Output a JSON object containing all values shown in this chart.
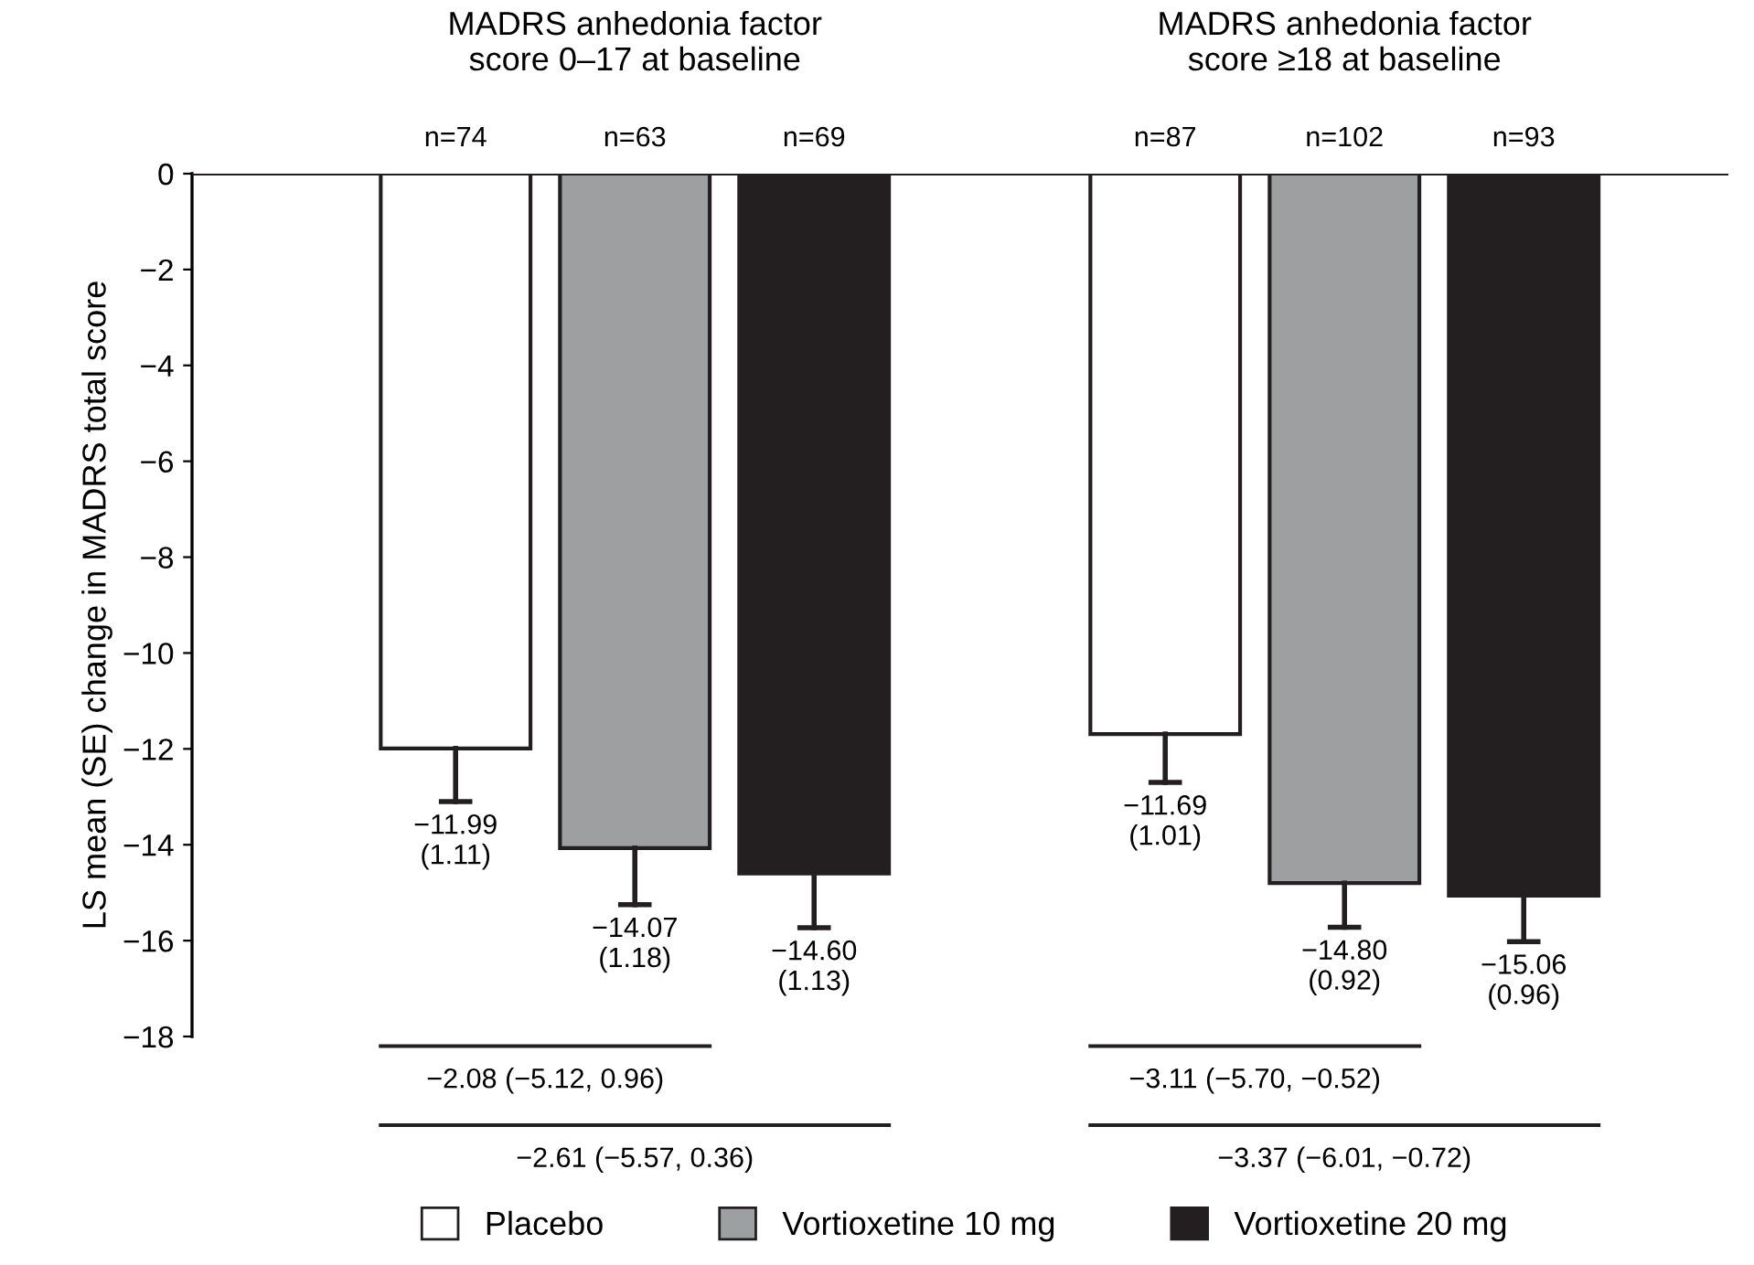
{
  "chart_data": {
    "type": "bar",
    "categories": [
      "MADRS anhedonia factor\nscore 0–17 at baseline",
      "MADRS anhedonia factor\nscore ≥18 at baseline"
    ],
    "ylabel": "LS mean (SE) change in MADRS total score",
    "ylim": [
      -18,
      0
    ],
    "yticks": [
      0,
      {
        "value": -2,
        "label": "−2"
      },
      {
        "value": -4,
        "label": "−4"
      },
      {
        "value": -6,
        "label": "−6"
      },
      {
        "value": -8,
        "label": "−8"
      },
      {
        "value": -10,
        "label": "−10"
      },
      {
        "value": -12,
        "label": "−12"
      },
      {
        "value": -14,
        "label": "−14"
      },
      {
        "value": -16,
        "label": "−16"
      },
      {
        "value": -18,
        "label": "−18"
      }
    ],
    "series": [
      {
        "name": "Placebo",
        "color": "#ffffff",
        "values": [
          -11.99,
          -11.69
        ],
        "errors": [
          [
            -13.1,
            -11.99
          ],
          [
            -12.7,
            -11.69
          ]
        ],
        "value_labels": [
          "−11.99\n(1.11)",
          "−11.69\n(1.01)"
        ]
      },
      {
        "name": "Vortioxetine 10 mg",
        "color": "#9d9fa0",
        "values": [
          -14.07,
          -14.8
        ],
        "errors": [
          [
            -15.25,
            -14.07
          ],
          [
            -15.72,
            -14.8
          ]
        ],
        "value_labels": [
          "−14.07\n(1.18)",
          "−14.80\n(0.92)"
        ]
      },
      {
        "name": "Vortioxetine 20 mg",
        "color": "#231f20",
        "values": [
          -14.6,
          -15.06
        ],
        "errors": [
          [
            -15.73,
            -14.6
          ],
          [
            -16.02,
            -15.06
          ]
        ],
        "value_labels": [
          "−14.60\n(1.13)",
          "−15.06\n(0.96)"
        ]
      }
    ],
    "annotations": [
      "n=74",
      "n=63",
      "n=69",
      "n=87",
      "n=102",
      "n=93",
      "−2.08 (−5.12, 0.96)",
      "−2.61 (−5.57, 0.36)",
      "−3.11 (−5.70, −0.52)",
      "−3.37 (−6.01, −0.72)"
    ],
    "legend": "bottom",
    "grid": false
  }
}
